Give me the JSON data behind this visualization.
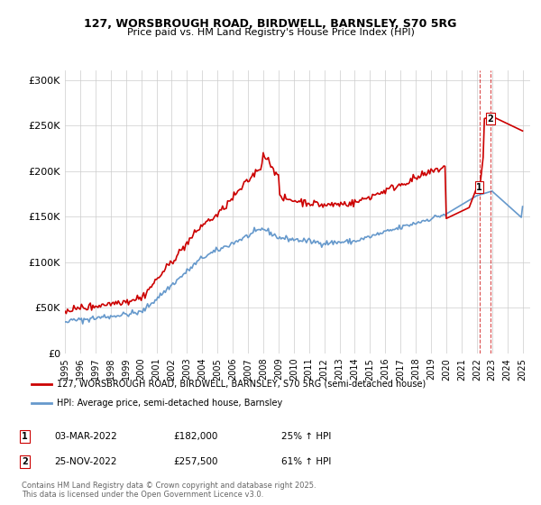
{
  "title_line1": "127, WORSBROUGH ROAD, BIRDWELL, BARNSLEY, S70 5RG",
  "title_line2": "Price paid vs. HM Land Registry's House Price Index (HPI)",
  "ylabel": "",
  "xlim_start": 1995.0,
  "xlim_end": 2025.5,
  "ylim": [
    0,
    310000
  ],
  "yticks": [
    0,
    50000,
    100000,
    150000,
    200000,
    250000,
    300000
  ],
  "ytick_labels": [
    "£0",
    "£50K",
    "£100K",
    "£150K",
    "£200K",
    "£250K",
    "£300K"
  ],
  "xtick_years": [
    1995,
    1996,
    1997,
    1998,
    1999,
    2000,
    2001,
    2002,
    2003,
    2004,
    2005,
    2006,
    2007,
    2008,
    2009,
    2010,
    2011,
    2012,
    2013,
    2014,
    2015,
    2016,
    2017,
    2018,
    2019,
    2020,
    2021,
    2022,
    2023,
    2024,
    2025
  ],
  "red_line_color": "#cc0000",
  "blue_line_color": "#6699cc",
  "purchase_points": [
    {
      "date_x": 2022.17,
      "price": 182000,
      "label": "1"
    },
    {
      "date_x": 2022.9,
      "price": 257500,
      "label": "2"
    }
  ],
  "annotation1_label": "1",
  "annotation1_date": "03-MAR-2022",
  "annotation1_price": "£182,000",
  "annotation1_hpi": "25% ↑ HPI",
  "annotation2_label": "2",
  "annotation2_date": "25-NOV-2022",
  "annotation2_price": "£257,500",
  "annotation2_hpi": "61% ↑ HPI",
  "legend_label_red": "127, WORSBROUGH ROAD, BIRDWELL, BARNSLEY, S70 5RG (semi-detached house)",
  "legend_label_blue": "HPI: Average price, semi-detached house, Barnsley",
  "footer_text": "Contains HM Land Registry data © Crown copyright and database right 2025.\nThis data is licensed under the Open Government Licence v3.0.",
  "bg_color": "#ffffff",
  "plot_bg_color": "#ffffff",
  "grid_color": "#cccccc"
}
